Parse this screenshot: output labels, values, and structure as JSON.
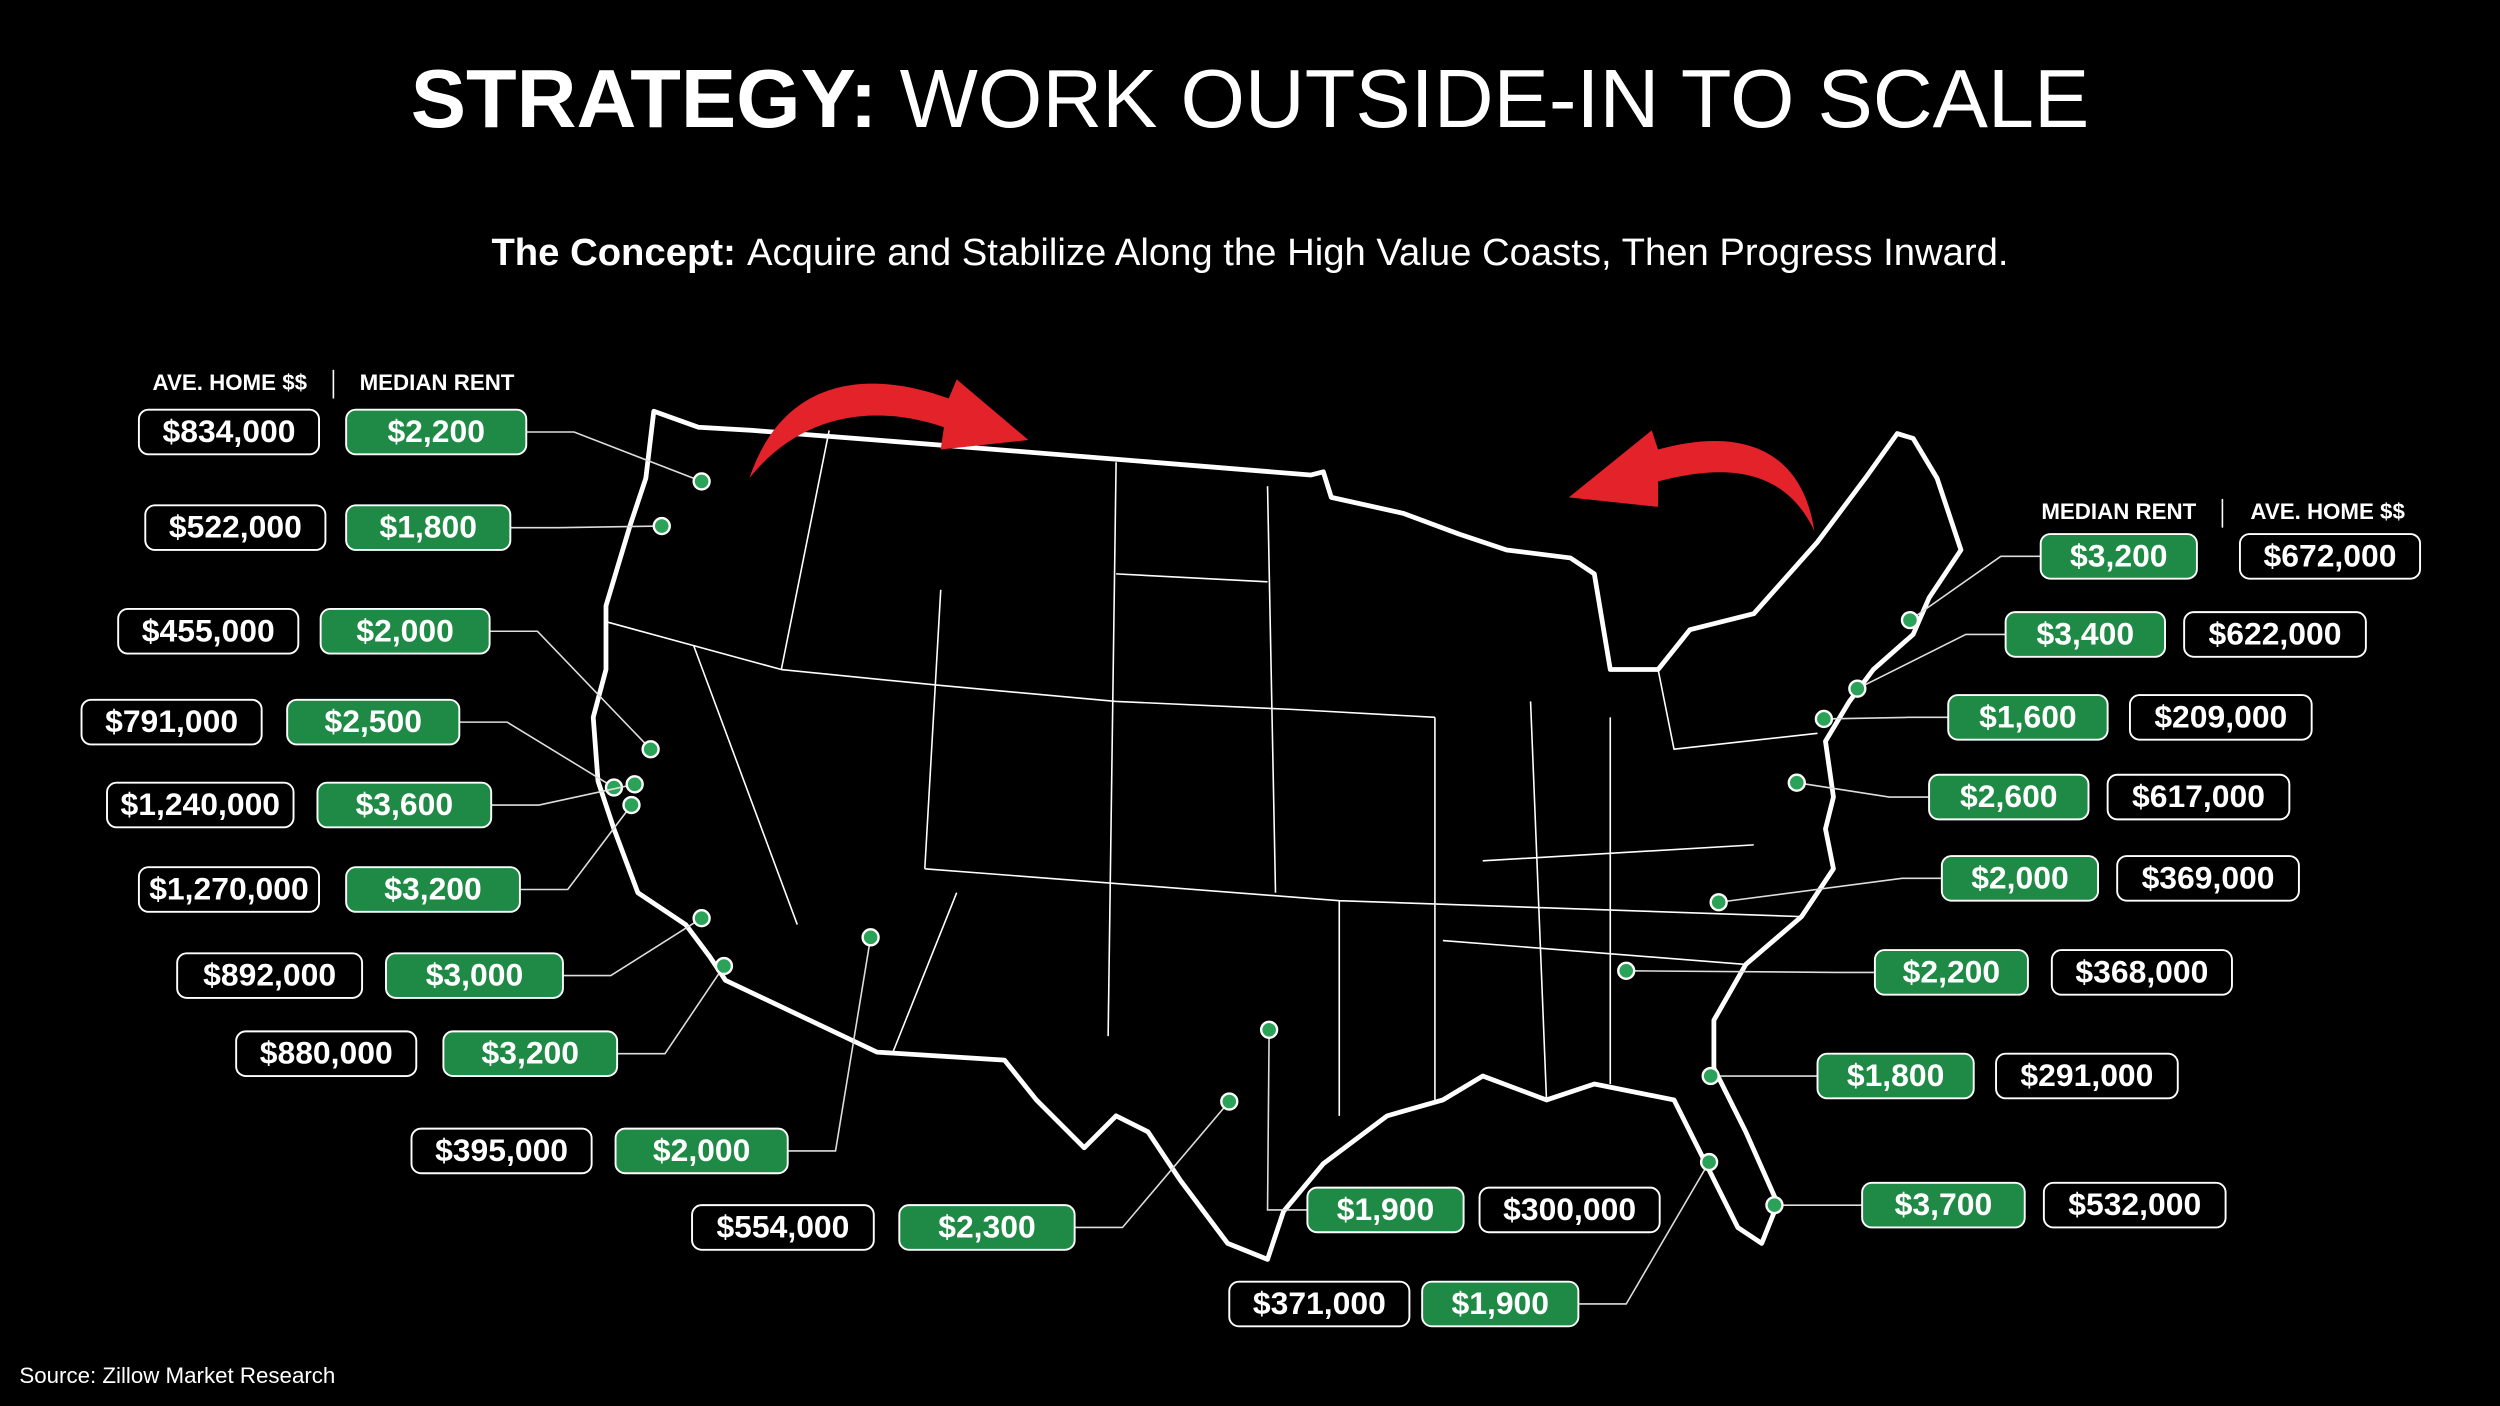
{
  "title": {
    "bold": "STRATEGY:",
    "rest": "WORK OUTSIDE-IN TO SCALE"
  },
  "subtitle": {
    "bold": "The Concept:",
    "rest": "Acquire and Stabilize Along the High Value Coasts, Then Progress Inward."
  },
  "headers": {
    "left": {
      "home": "AVE. HOME $$",
      "rent": "MEDIAN RENT"
    },
    "right": {
      "rent": "MEDIAN RENT",
      "home": "AVE. HOME $$"
    }
  },
  "markets": [
    {
      "home": "$834,000",
      "rent": "$2,200"
    },
    {
      "home": "$522,000",
      "rent": "$1,800"
    },
    {
      "home": "$455,000",
      "rent": "$2,000"
    },
    {
      "home": "$791,000",
      "rent": "$2,500"
    },
    {
      "home": "$1,240,000",
      "rent": "$3,600"
    },
    {
      "home": "$1,270,000",
      "rent": "$3,200"
    },
    {
      "home": "$892,000",
      "rent": "$3,000"
    },
    {
      "home": "$880,000",
      "rent": "$3,200"
    },
    {
      "home": "$395,000",
      "rent": "$2,000"
    },
    {
      "home": "$554,000",
      "rent": "$2,300"
    },
    {
      "home": "$300,000",
      "rent": "$1,900"
    },
    {
      "home": "$371,000",
      "rent": "$1,900"
    },
    {
      "home": "$672,000",
      "rent": "$3,200"
    },
    {
      "home": "$622,000",
      "rent": "$3,400"
    },
    {
      "home": "$209,000",
      "rent": "$1,600"
    },
    {
      "home": "$617,000",
      "rent": "$2,600"
    },
    {
      "home": "$369,000",
      "rent": "$2,000"
    },
    {
      "home": "$368,000",
      "rent": "$2,200"
    },
    {
      "home": "$291,000",
      "rent": "$1,800"
    },
    {
      "home": "$532,000",
      "rent": "$3,700"
    }
  ],
  "source": "Source: Zillow Market Research"
}
